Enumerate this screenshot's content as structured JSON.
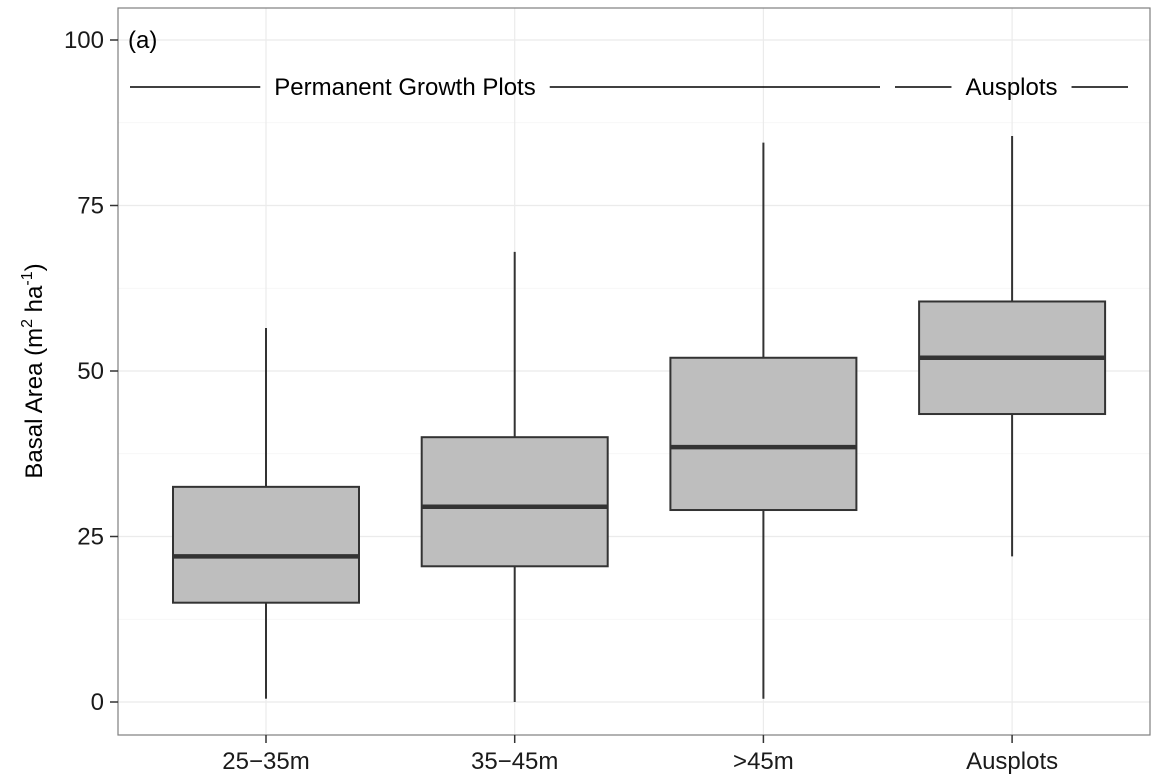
{
  "chart_data": {
    "type": "box",
    "panel_label": "(a)",
    "ylabel": "Basal Area (m2 ha-1)",
    "ylabel_parts": {
      "main": "Basal Area (m",
      "sup1": "2",
      "mid": " ha",
      "sup2": "-1",
      "end": ")"
    },
    "ylim": [
      0,
      100
    ],
    "yticks": [
      0,
      25,
      50,
      75,
      100
    ],
    "grid": true,
    "categories": [
      "25−35m",
      "35−45m",
      ">45m",
      "Ausplots"
    ],
    "boxes": [
      {
        "category": "25−35m",
        "min": 0.5,
        "q1": 15,
        "median": 22,
        "q3": 32.5,
        "max": 56.5
      },
      {
        "category": "35−45m",
        "min": 0,
        "q1": 20.5,
        "median": 29.5,
        "q3": 40,
        "max": 68
      },
      {
        "category": ">45m",
        "min": 0.5,
        "q1": 29,
        "median": 38.5,
        "q3": 52,
        "max": 84.5
      },
      {
        "category": "Ausplots",
        "min": 22,
        "q1": 43.5,
        "median": 52,
        "q3": 60.5,
        "max": 85.5
      }
    ],
    "group_annotations": [
      {
        "label": "Permanent Growth Plots",
        "from": 0,
        "to": 2
      },
      {
        "label": "Ausplots",
        "from": 3,
        "to": 3
      }
    ],
    "colors": {
      "box_fill": "#bebebe",
      "box_stroke": "#333333",
      "median": "#333333",
      "grid": "#ebebeb",
      "panel_border": "#7f7f7f"
    }
  }
}
